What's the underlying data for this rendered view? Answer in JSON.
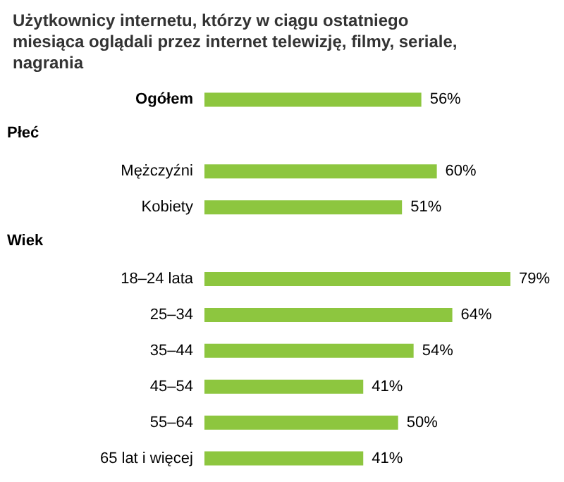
{
  "chart_data": {
    "type": "bar",
    "orientation": "horizontal",
    "title": "Użytkownicy internetu, którzy w ciągu ostatniego miesiąca oglądali przez internet telewizję, filmy, seriale, nagrania",
    "categories": [
      "Ogółem",
      null,
      "Mężczyźni",
      "Kobiety",
      null,
      "18–24 lata",
      "25–34",
      "35–44",
      "45–54",
      "55–64",
      "65 lat i więcej"
    ],
    "values": [
      56,
      null,
      60,
      51,
      null,
      79,
      64,
      54,
      41,
      50,
      41
    ],
    "value_labels": [
      "56%",
      null,
      "60%",
      "51%",
      null,
      "79%",
      "64%",
      "54%",
      "41%",
      "50%",
      "41%"
    ],
    "annotations": [
      "Płeć",
      "Wiek"
    ],
    "color": "#8dc63f"
  }
}
